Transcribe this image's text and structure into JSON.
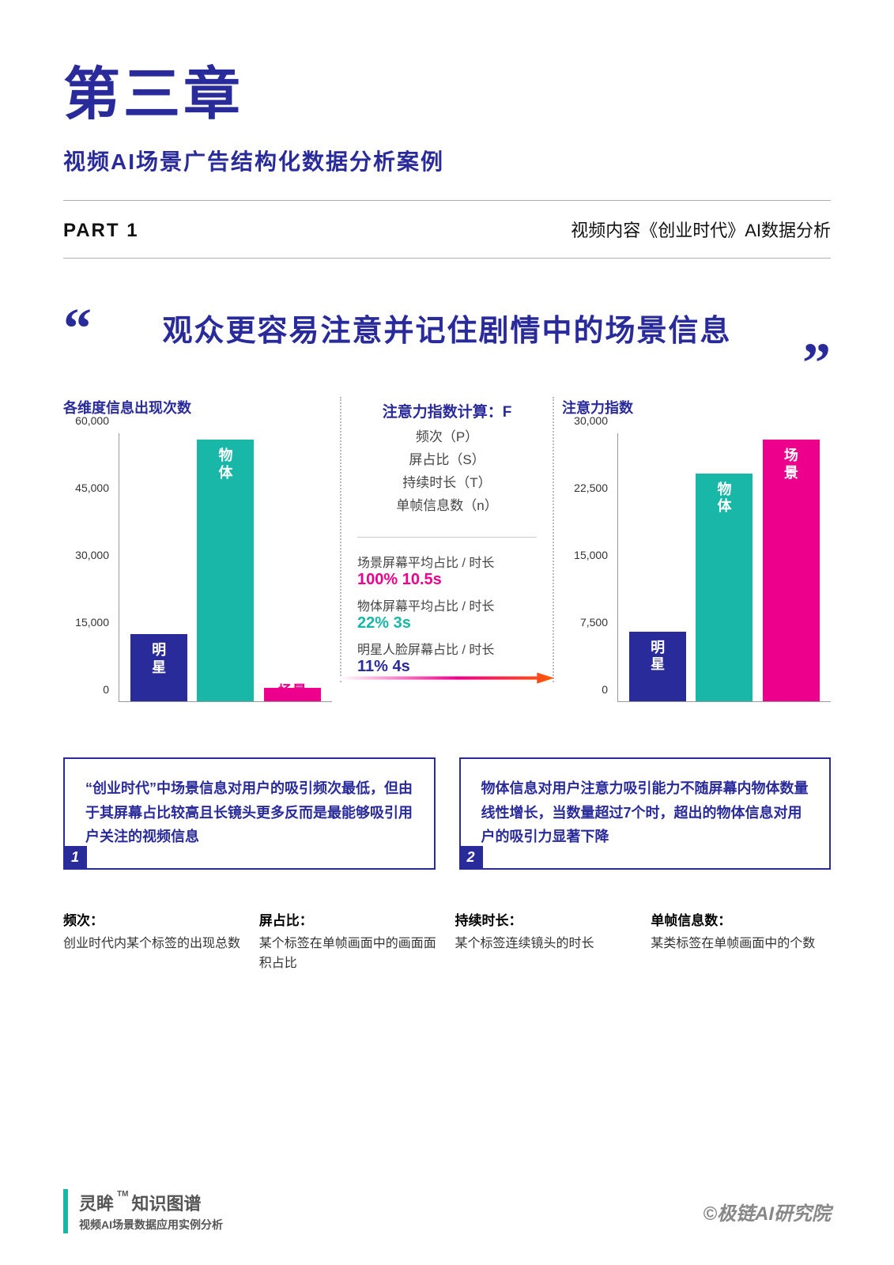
{
  "chapter": {
    "title": "第三章",
    "subtitle": "视频AI场景广告结构化数据分析案例"
  },
  "part": {
    "label": "PART 1",
    "desc": "视频内容《创业时代》AI数据分析"
  },
  "quote": {
    "open": "“",
    "close": "”",
    "text": "观众更容易注意并记住剧情中的场景信息"
  },
  "chart_left": {
    "title": "各维度信息出现次数",
    "type": "bar",
    "ymax": 60000,
    "ytick_labels": [
      "0",
      "15,000",
      "30,000",
      "45,000",
      "60,000"
    ],
    "bars": [
      {
        "label": "明\n星",
        "value": 15000,
        "color": "#2a2b9b"
      },
      {
        "label": "物\n体",
        "value": 58500,
        "color": "#19b7a8"
      },
      {
        "label": "场景",
        "value": 3000,
        "color": "#ec008c"
      }
    ]
  },
  "chart_right": {
    "title": "注意力指数",
    "type": "bar",
    "ymax": 30000,
    "ytick_labels": [
      "0",
      "7,500",
      "15,000",
      "22,500",
      "30,000"
    ],
    "bars": [
      {
        "label": "明\n星",
        "value": 7800,
        "color": "#2a2b9b"
      },
      {
        "label": "物\n体",
        "value": 25500,
        "color": "#19b7a8"
      },
      {
        "label": "场\n景",
        "value": 29300,
        "color": "#ec008c"
      }
    ]
  },
  "middle": {
    "calc_title": "注意力指数计算：F",
    "factors": [
      "频次（P）",
      "屏占比（S）",
      "持续时长（T）",
      "单帧信息数（n）"
    ],
    "metrics": [
      {
        "label": "场景屏幕平均占比 / 时长",
        "value": "100% 10.5s",
        "color": "#ec008c"
      },
      {
        "label": "物体屏幕平均占比 / 时长",
        "value": "22% 3s",
        "color": "#19b7a8"
      },
      {
        "label": "明星人脸屏幕占比 / 时长",
        "value": "11% 4s",
        "color": "#2a2b9b"
      }
    ]
  },
  "notes": [
    {
      "num": "1",
      "text": "“创业时代”中场景信息对用户的吸引频次最低，但由于其屏幕占比较高且长镜头更多反而是最能够吸引用户关注的视频信息"
    },
    {
      "num": "2",
      "text": "物体信息对用户注意力吸引能力不随屏幕内物体数量线性增长，当数量超过7个时，超出的物体信息对用户的吸引力显著下降"
    }
  ],
  "defs": [
    {
      "term": "频次：",
      "body": "创业时代内某个标签的出现总数"
    },
    {
      "term": "屏占比：",
      "body": "某个标签在单帧画面中的画面面积占比"
    },
    {
      "term": "持续时长：",
      "body": "某个标签连续镜头的时长"
    },
    {
      "term": "单帧信息数：",
      "body": "某类标签在单帧画面中的个数"
    }
  ],
  "footer": {
    "brand1a": "灵眸",
    "tm": "TM",
    "brand1b": "知识图谱",
    "brand2": "视频AI场景数据应用实例分析",
    "right": "©极链AI研究院"
  }
}
